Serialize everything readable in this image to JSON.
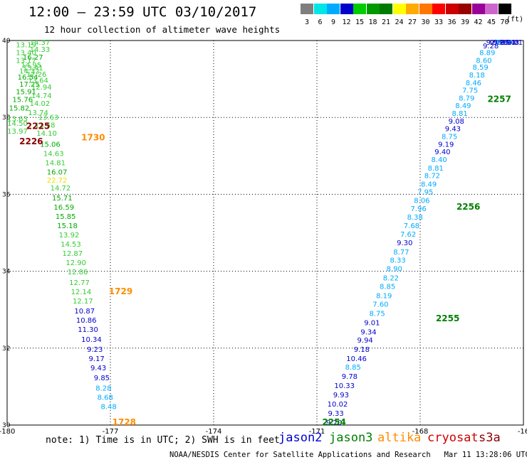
{
  "header": {
    "title": "12:00 – 23:59 UTC 03/10/2017",
    "subtitle": "12 hour collection of altimeter wave heights"
  },
  "legend": {
    "levels": [
      "3",
      "6",
      "9",
      "12",
      "15",
      "18",
      "21",
      "24",
      "27",
      "30",
      "33",
      "36",
      "39",
      "42",
      "45",
      "70"
    ],
    "unit": "(ft)",
    "colors": [
      "#7f7f7f",
      "#00e5e5",
      "#00aaff",
      "#0000cd",
      "#00cc00",
      "#009900",
      "#007a00",
      "#ffff00",
      "#ffaa00",
      "#ff7700",
      "#ff0000",
      "#cc0000",
      "#990000",
      "#990099",
      "#cc66cc",
      "#000000"
    ]
  },
  "axes": {
    "x_ticks": [
      "-180",
      "-177",
      "-174",
      "-171",
      "-168",
      "-16"
    ],
    "y_ticks": [
      "40",
      "38",
      "36",
      "34",
      "32",
      "30"
    ],
    "lon_range": [
      -180,
      -165
    ],
    "lat_range": [
      30,
      40
    ],
    "grid": "dotted"
  },
  "map_data": {
    "time_labels": [
      {
        "lon": -176.6,
        "lat": 30.0,
        "text": "1728",
        "color": "#ff8c00"
      },
      {
        "lon": -176.7,
        "lat": 33.4,
        "text": "1729",
        "color": "#ff8c00"
      },
      {
        "lon": -177.5,
        "lat": 37.4,
        "text": "1730",
        "color": "#ff8c00"
      },
      {
        "lon": -179.1,
        "lat": 37.7,
        "text": "2225",
        "color": "#8b0000"
      },
      {
        "lon": -179.3,
        "lat": 37.3,
        "text": "2226",
        "color": "#8b0000"
      },
      {
        "lon": -170.5,
        "lat": 30.0,
        "text": "2254",
        "color": "#008000"
      },
      {
        "lon": -167.2,
        "lat": 32.7,
        "text": "2255",
        "color": "#008000"
      },
      {
        "lon": -166.6,
        "lat": 35.6,
        "text": "2256",
        "color": "#008000"
      },
      {
        "lon": -165.7,
        "lat": 38.4,
        "text": "2257",
        "color": "#008000"
      }
    ],
    "tracks": [
      {
        "name": "west pass",
        "points": [
          {
            "lon": -179.05,
            "lat": 39.9,
            "v": "14.37"
          },
          {
            "lon": -179.45,
            "lat": 39.82,
            "v": "13.19"
          },
          {
            "lon": -179.05,
            "lat": 39.7,
            "v": "14.33"
          },
          {
            "lon": -179.45,
            "lat": 39.62,
            "v": "13.40"
          },
          {
            "lon": -179.25,
            "lat": 39.5,
            "v": "16.27"
          },
          {
            "lon": -179.45,
            "lat": 39.42,
            "v": "13.17"
          },
          {
            "lon": -179.3,
            "lat": 39.3,
            "v": "14.95"
          },
          {
            "lon": -179.25,
            "lat": 39.22,
            "v": "13.41"
          },
          {
            "lon": -179.35,
            "lat": 39.14,
            "v": "14.32"
          },
          {
            "lon": -179.15,
            "lat": 39.06,
            "v": "12.26"
          },
          {
            "lon": -179.4,
            "lat": 38.98,
            "v": "16.54"
          },
          {
            "lon": -179.1,
            "lat": 38.9,
            "v": "13.64"
          },
          {
            "lon": -179.35,
            "lat": 38.8,
            "v": "17.25"
          },
          {
            "lon": -179.0,
            "lat": 38.72,
            "v": "12.94"
          },
          {
            "lon": -179.45,
            "lat": 38.6,
            "v": "15.91"
          },
          {
            "lon": -179.0,
            "lat": 38.5,
            "v": "14.74"
          },
          {
            "lon": -179.55,
            "lat": 38.4,
            "v": "15.76"
          },
          {
            "lon": -179.05,
            "lat": 38.3,
            "v": "14.02"
          },
          {
            "lon": -179.65,
            "lat": 38.18,
            "v": "15.82"
          },
          {
            "lon": -179.1,
            "lat": 38.06,
            "v": "13.74"
          },
          {
            "lon": -178.8,
            "lat": 37.94,
            "v": "13.63"
          },
          {
            "lon": -179.7,
            "lat": 37.9,
            "v": "13.63"
          },
          {
            "lon": -179.7,
            "lat": 37.78,
            "v": "14.50"
          },
          {
            "lon": -178.9,
            "lat": 37.74,
            "v": "13.58"
          },
          {
            "lon": -179.7,
            "lat": 37.58,
            "v": "13.97"
          },
          {
            "lon": -178.85,
            "lat": 37.52,
            "v": "14.10"
          },
          {
            "lon": -178.75,
            "lat": 37.24,
            "v": "15.06"
          },
          {
            "lon": -178.65,
            "lat": 37.0,
            "v": "14.63"
          },
          {
            "lon": -178.6,
            "lat": 36.76,
            "v": "14.81"
          },
          {
            "lon": -178.55,
            "lat": 36.52,
            "v": "16.07"
          },
          {
            "lon": -178.55,
            "lat": 36.3,
            "v": "22.72"
          },
          {
            "lon": -178.45,
            "lat": 36.1,
            "v": "14.72"
          },
          {
            "lon": -178.4,
            "lat": 35.84,
            "v": "15.71"
          },
          {
            "lon": -178.35,
            "lat": 35.6,
            "v": "16.59"
          },
          {
            "lon": -178.3,
            "lat": 35.36,
            "v": "15.85"
          },
          {
            "lon": -178.25,
            "lat": 35.12,
            "v": "15.18"
          },
          {
            "lon": -178.2,
            "lat": 34.88,
            "v": "13.92"
          },
          {
            "lon": -178.15,
            "lat": 34.64,
            "v": "14.53"
          },
          {
            "lon": -178.1,
            "lat": 34.4,
            "v": "12.87"
          },
          {
            "lon": -178.0,
            "lat": 34.16,
            "v": "12.90"
          },
          {
            "lon": -177.95,
            "lat": 33.92,
            "v": "12.86"
          },
          {
            "lon": -177.9,
            "lat": 33.64,
            "v": "12.77"
          },
          {
            "lon": -177.85,
            "lat": 33.4,
            "v": "12.14"
          },
          {
            "lon": -177.8,
            "lat": 33.16,
            "v": "12.17"
          },
          {
            "lon": -177.75,
            "lat": 32.9,
            "v": "10.87"
          },
          {
            "lon": -177.7,
            "lat": 32.66,
            "v": "10.86"
          },
          {
            "lon": -177.65,
            "lat": 32.42,
            "v": "11.30"
          },
          {
            "lon": -177.55,
            "lat": 32.16,
            "v": "10.34"
          },
          {
            "lon": -177.45,
            "lat": 31.9,
            "v": "9.23"
          },
          {
            "lon": -177.4,
            "lat": 31.66,
            "v": "9.17"
          },
          {
            "lon": -177.35,
            "lat": 31.42,
            "v": "9.43"
          },
          {
            "lon": -177.25,
            "lat": 31.16,
            "v": "9.85"
          },
          {
            "lon": -177.2,
            "lat": 30.9,
            "v": "8.28"
          },
          {
            "lon": -177.15,
            "lat": 30.66,
            "v": "8.68"
          },
          {
            "lon": -177.05,
            "lat": 30.42,
            "v": "8.48"
          }
        ]
      },
      {
        "name": "east pass",
        "points": [
          {
            "lon": -170.5,
            "lat": 30.0,
            "v": "9.20"
          },
          {
            "lon": -170.45,
            "lat": 30.24,
            "v": "9.33"
          },
          {
            "lon": -170.4,
            "lat": 30.48,
            "v": "10.02"
          },
          {
            "lon": -170.3,
            "lat": 30.72,
            "v": "9.93"
          },
          {
            "lon": -170.2,
            "lat": 30.96,
            "v": "10.33"
          },
          {
            "lon": -170.05,
            "lat": 31.2,
            "v": "9.78"
          },
          {
            "lon": -169.95,
            "lat": 31.44,
            "v": "8.85"
          },
          {
            "lon": -169.85,
            "lat": 31.66,
            "v": "10.46"
          },
          {
            "lon": -169.7,
            "lat": 31.9,
            "v": "9.18"
          },
          {
            "lon": -169.6,
            "lat": 32.14,
            "v": "9.94"
          },
          {
            "lon": -169.5,
            "lat": 32.36,
            "v": "9.34"
          },
          {
            "lon": -169.4,
            "lat": 32.6,
            "v": "9.01"
          },
          {
            "lon": -169.25,
            "lat": 32.84,
            "v": "8.75"
          },
          {
            "lon": -169.15,
            "lat": 33.08,
            "v": "7.60"
          },
          {
            "lon": -169.05,
            "lat": 33.3,
            "v": "8.19"
          },
          {
            "lon": -168.95,
            "lat": 33.54,
            "v": "8.85"
          },
          {
            "lon": -168.85,
            "lat": 33.76,
            "v": "8.22"
          },
          {
            "lon": -168.75,
            "lat": 34.0,
            "v": "8.90"
          },
          {
            "lon": -168.65,
            "lat": 34.22,
            "v": "8.33"
          },
          {
            "lon": -168.55,
            "lat": 34.44,
            "v": "8.77"
          },
          {
            "lon": -168.45,
            "lat": 34.68,
            "v": "9.30"
          },
          {
            "lon": -168.35,
            "lat": 34.9,
            "v": "7.62"
          },
          {
            "lon": -168.25,
            "lat": 35.12,
            "v": "7.68"
          },
          {
            "lon": -168.15,
            "lat": 35.34,
            "v": "8.38"
          },
          {
            "lon": -168.05,
            "lat": 35.56,
            "v": "7.96"
          },
          {
            "lon": -167.95,
            "lat": 35.78,
            "v": "8.06"
          },
          {
            "lon": -167.85,
            "lat": 36.0,
            "v": "7.95"
          },
          {
            "lon": -167.75,
            "lat": 36.2,
            "v": "8.49"
          },
          {
            "lon": -167.65,
            "lat": 36.42,
            "v": "8.72"
          },
          {
            "lon": -167.55,
            "lat": 36.62,
            "v": "8.81"
          },
          {
            "lon": -167.45,
            "lat": 36.84,
            "v": "8.40"
          },
          {
            "lon": -167.35,
            "lat": 37.04,
            "v": "9.40"
          },
          {
            "lon": -167.25,
            "lat": 37.24,
            "v": "9.19"
          },
          {
            "lon": -167.15,
            "lat": 37.44,
            "v": "8.75"
          },
          {
            "lon": -167.05,
            "lat": 37.64,
            "v": "9.43"
          },
          {
            "lon": -166.95,
            "lat": 37.84,
            "v": "9.08"
          },
          {
            "lon": -166.85,
            "lat": 38.04,
            "v": "8.81"
          },
          {
            "lon": -166.75,
            "lat": 38.24,
            "v": "8.49"
          },
          {
            "lon": -166.65,
            "lat": 38.44,
            "v": "8.79"
          },
          {
            "lon": -166.55,
            "lat": 38.64,
            "v": "7.75"
          },
          {
            "lon": -166.45,
            "lat": 38.84,
            "v": "8.46"
          },
          {
            "lon": -166.35,
            "lat": 39.04,
            "v": "8.18"
          },
          {
            "lon": -166.25,
            "lat": 39.24,
            "v": "8.59"
          },
          {
            "lon": -166.15,
            "lat": 39.42,
            "v": "8.60"
          },
          {
            "lon": -166.05,
            "lat": 39.62,
            "v": "8.89"
          },
          {
            "lon": -165.95,
            "lat": 39.8,
            "v": "9.28"
          },
          {
            "lon": -165.85,
            "lat": 39.98,
            "v": "9.55"
          },
          {
            "lon": -165.75,
            "lat": 40.16,
            "v": "9.28"
          },
          {
            "lon": -165.65,
            "lat": 40.34,
            "v": "9.35"
          },
          {
            "lon": -165.55,
            "lat": 40.52,
            "v": "8.96"
          },
          {
            "lon": -165.45,
            "lat": 40.7,
            "v": "9.11"
          },
          {
            "lon": -165.35,
            "lat": 40.88,
            "v": "9.48"
          },
          {
            "lon": -165.25,
            "lat": 41.06,
            "v": "9.01"
          }
        ]
      }
    ]
  },
  "footer": {
    "note": "note: 1) Time is in UTC; 2) SWH is in feet",
    "satellites": [
      {
        "name": "jason2",
        "color": "#0000cd"
      },
      {
        "name": "jason3",
        "color": "#008000"
      },
      {
        "name": "altika",
        "color": "#ff8c00"
      },
      {
        "name": "cryosat",
        "color": "#cc0000"
      },
      {
        "name": "s3a",
        "color": "#8b0000"
      }
    ],
    "credit": "NOAA/NESDIS Center for Satellite Applications and Research   Mar 11 13:28:06 UTC 2017"
  }
}
